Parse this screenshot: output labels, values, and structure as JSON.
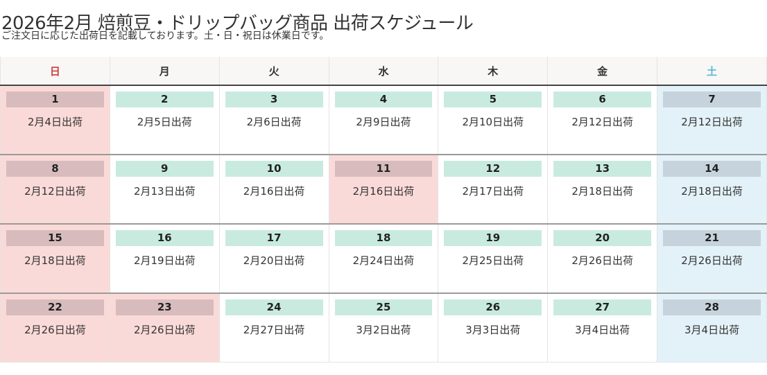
{
  "page": {
    "title": "2026年2月 焙煎豆・ドリップバッグ商品 出荷スケジュール",
    "subtitle": "ご注文日に応じた出荷日を記載しております。土・日・祝日は休業日です。"
  },
  "calendar": {
    "weekdays": [
      "日",
      "月",
      "火",
      "水",
      "木",
      "金",
      "土"
    ],
    "weeks": [
      [
        {
          "day": "1",
          "ship": "2月4日出荷",
          "type": "holiday"
        },
        {
          "day": "2",
          "ship": "2月5日出荷",
          "type": "business"
        },
        {
          "day": "3",
          "ship": "2月6日出荷",
          "type": "business"
        },
        {
          "day": "4",
          "ship": "2月9日出荷",
          "type": "business"
        },
        {
          "day": "5",
          "ship": "2月10日出荷",
          "type": "business"
        },
        {
          "day": "6",
          "ship": "2月12日出荷",
          "type": "business"
        },
        {
          "day": "7",
          "ship": "2月12日出荷",
          "type": "saturday"
        }
      ],
      [
        {
          "day": "8",
          "ship": "2月12日出荷",
          "type": "holiday"
        },
        {
          "day": "9",
          "ship": "2月13日出荷",
          "type": "business"
        },
        {
          "day": "10",
          "ship": "2月16日出荷",
          "type": "business"
        },
        {
          "day": "11",
          "ship": "2月16日出荷",
          "type": "holiday"
        },
        {
          "day": "12",
          "ship": "2月17日出荷",
          "type": "business"
        },
        {
          "day": "13",
          "ship": "2月18日出荷",
          "type": "business"
        },
        {
          "day": "14",
          "ship": "2月18日出荷",
          "type": "saturday"
        }
      ],
      [
        {
          "day": "15",
          "ship": "2月18日出荷",
          "type": "holiday"
        },
        {
          "day": "16",
          "ship": "2月19日出荷",
          "type": "business"
        },
        {
          "day": "17",
          "ship": "2月20日出荷",
          "type": "business"
        },
        {
          "day": "18",
          "ship": "2月24日出荷",
          "type": "business"
        },
        {
          "day": "19",
          "ship": "2月25日出荷",
          "type": "business"
        },
        {
          "day": "20",
          "ship": "2月26日出荷",
          "type": "business"
        },
        {
          "day": "21",
          "ship": "2月26日出荷",
          "type": "saturday"
        }
      ],
      [
        {
          "day": "22",
          "ship": "2月26日出荷",
          "type": "holiday"
        },
        {
          "day": "23",
          "ship": "2月26日出荷",
          "type": "holiday"
        },
        {
          "day": "24",
          "ship": "2月27日出荷",
          "type": "business"
        },
        {
          "day": "25",
          "ship": "3月2日出荷",
          "type": "business"
        },
        {
          "day": "26",
          "ship": "3月3日出荷",
          "type": "business"
        },
        {
          "day": "27",
          "ship": "3月4日出荷",
          "type": "business"
        },
        {
          "day": "28",
          "ship": "3月4日出荷",
          "type": "saturday"
        }
      ]
    ]
  }
}
